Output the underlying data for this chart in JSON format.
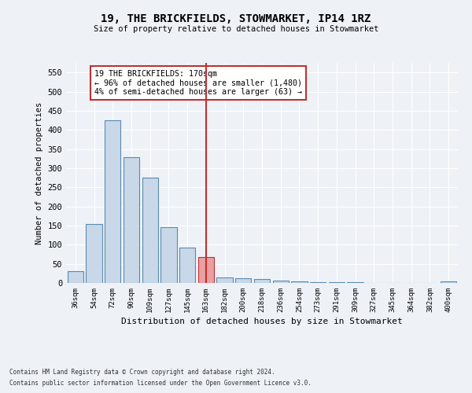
{
  "title": "19, THE BRICKFIELDS, STOWMARKET, IP14 1RZ",
  "subtitle": "Size of property relative to detached houses in Stowmarket",
  "xlabel": "Distribution of detached houses by size in Stowmarket",
  "ylabel": "Number of detached properties",
  "categories": [
    "36sqm",
    "54sqm",
    "72sqm",
    "90sqm",
    "109sqm",
    "127sqm",
    "145sqm",
    "163sqm",
    "182sqm",
    "200sqm",
    "218sqm",
    "236sqm",
    "254sqm",
    "273sqm",
    "291sqm",
    "309sqm",
    "327sqm",
    "345sqm",
    "364sqm",
    "382sqm",
    "400sqm"
  ],
  "values": [
    30,
    155,
    425,
    328,
    275,
    145,
    93,
    68,
    15,
    13,
    10,
    7,
    5,
    3,
    2,
    2,
    1,
    1,
    1,
    1,
    5
  ],
  "bar_color": "#c8d8e8",
  "bar_edge_color": "#5a8ab0",
  "highlight_bar_index": 7,
  "highlight_bar_color": "#e8a0a0",
  "highlight_bar_edge_color": "#c03030",
  "vline_color": "#c03030",
  "annotation_text": "19 THE BRICKFIELDS: 170sqm\n← 96% of detached houses are smaller (1,480)\n4% of semi-detached houses are larger (63) →",
  "annotation_box_edge_color": "#c03030",
  "ylim": [
    0,
    575
  ],
  "yticks": [
    0,
    50,
    100,
    150,
    200,
    250,
    300,
    350,
    400,
    450,
    500,
    550
  ],
  "background_color": "#eef2f7",
  "grid_color": "#ffffff",
  "footer_line1": "Contains HM Land Registry data © Crown copyright and database right 2024.",
  "footer_line2": "Contains public sector information licensed under the Open Government Licence v3.0."
}
